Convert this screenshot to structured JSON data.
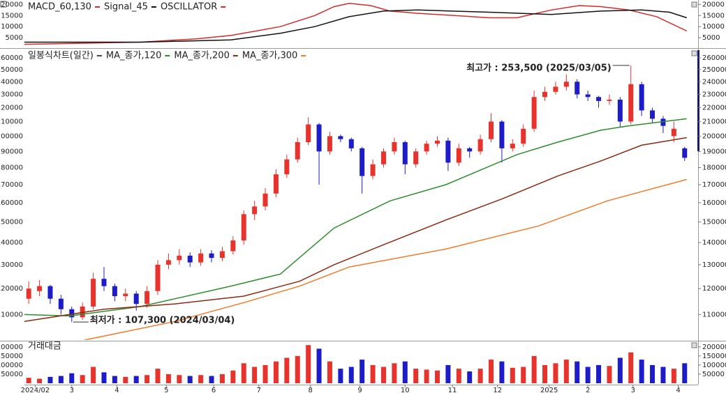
{
  "chart_data": [
    {
      "type": "line",
      "xlim": [
        0,
        310
      ],
      "ylim": [
        0,
        22000
      ],
      "yticks": [
        5000,
        10000,
        15000,
        20000
      ],
      "series": [
        {
          "name": "MACD_60,130",
          "color": "#d42a2a",
          "x": [
            0,
            28,
            54,
            80,
            96,
            119,
            135,
            144,
            151,
            161,
            170,
            183,
            200,
            216,
            229,
            245,
            258,
            268,
            281,
            294,
            308
          ],
          "values": [
            2000,
            2500,
            3000,
            4500,
            6000,
            10000,
            15000,
            19000,
            20500,
            19500,
            17000,
            16000,
            15000,
            14000,
            14000,
            17500,
            19500,
            19000,
            17500,
            14500,
            8000
          ]
        },
        {
          "name": "Signal_45",
          "color": "#111111",
          "x": [
            0,
            54,
            96,
            119,
            135,
            151,
            167,
            183,
            216,
            245,
            268,
            287,
            300,
            308
          ],
          "values": [
            3000,
            3000,
            4000,
            7000,
            10000,
            14500,
            17000,
            17500,
            16500,
            15500,
            17000,
            17500,
            16500,
            14000
          ]
        }
      ],
      "legend_extra": "OSCILLATOR",
      "legend_extra_color": "#d42a2a"
    },
    {
      "type": "candlestick",
      "title": "일봉식차트(일간)",
      "log_y": true,
      "xlim": [
        0,
        310
      ],
      "ylim": [
        101000,
        268000
      ],
      "yticks": [
        110000,
        120000,
        130000,
        140000,
        150000,
        160000,
        170000,
        180000,
        190000,
        200000,
        210000,
        220000,
        230000,
        240000,
        250000,
        260000
      ],
      "up_color": "#e8322c",
      "down_color": "#1c1cc8",
      "x": [
        2,
        7,
        12,
        17,
        22,
        27,
        32,
        37,
        42,
        47,
        52,
        57,
        62,
        67,
        72,
        77,
        82,
        87,
        92,
        97,
        102,
        107,
        112,
        117,
        122,
        127,
        132,
        137,
        142,
        147,
        152,
        157,
        162,
        167,
        172,
        177,
        182,
        187,
        192,
        197,
        202,
        207,
        212,
        217,
        222,
        227,
        232,
        237,
        242,
        247,
        252,
        257,
        262,
        267,
        272,
        277,
        282,
        287,
        292,
        297,
        302,
        307
      ],
      "open": [
        116000,
        119000,
        121000,
        116000,
        112000,
        109000,
        113000,
        124000,
        121000,
        117000,
        118000,
        114000,
        119000,
        130000,
        132000,
        134000,
        131000,
        135000,
        133000,
        136000,
        141000,
        154000,
        158000,
        165000,
        176000,
        185000,
        196000,
        208000,
        190000,
        200000,
        198000,
        192000,
        175000,
        182000,
        190000,
        196000,
        182000,
        190000,
        195000,
        197000,
        183000,
        192000,
        190000,
        198000,
        210000,
        192000,
        195000,
        205000,
        228000,
        232000,
        236000,
        240000,
        230000,
        228000,
        225000,
        226000,
        210000,
        238000,
        218000,
        212000,
        200000,
        192000
      ],
      "high": [
        123000,
        123500,
        121500,
        117500,
        113000,
        114500,
        126500,
        129000,
        122000,
        120000,
        119000,
        121000,
        132000,
        135000,
        137000,
        135500,
        137000,
        136500,
        138000,
        143000,
        156000,
        161000,
        168000,
        179000,
        188000,
        199000,
        213000,
        209000,
        203000,
        201000,
        199000,
        193000,
        185000,
        192000,
        199000,
        197000,
        192000,
        197000,
        200000,
        199000,
        195000,
        193000,
        201000,
        216000,
        211000,
        198000,
        208000,
        233000,
        236000,
        240000,
        246000,
        242000,
        233000,
        229000,
        230000,
        228000,
        253500,
        240000,
        220000,
        214000,
        210000,
        193000
      ],
      "low": [
        114000,
        117000,
        114000,
        110000,
        107300,
        108000,
        112000,
        119000,
        115000,
        115000,
        111500,
        112500,
        117500,
        128000,
        130000,
        129000,
        129500,
        131000,
        131500,
        134500,
        139000,
        151000,
        156000,
        163000,
        174000,
        183000,
        194000,
        170000,
        188000,
        196000,
        190000,
        165000,
        173000,
        180000,
        188000,
        176000,
        180000,
        188000,
        193000,
        178000,
        181000,
        186000,
        188000,
        196000,
        183000,
        190000,
        193000,
        203000,
        225000,
        230000,
        233000,
        227000,
        225000,
        220000,
        222000,
        206000,
        208000,
        214000,
        209000,
        202000,
        196000,
        184000
      ],
      "close": [
        120000,
        121000,
        116000,
        112000,
        109000,
        113000,
        124000,
        121000,
        117000,
        118000,
        114000,
        119000,
        130000,
        132000,
        134000,
        131000,
        135000,
        133000,
        136000,
        141000,
        154000,
        158000,
        165000,
        176000,
        185000,
        196000,
        208000,
        190000,
        200000,
        198000,
        192000,
        175000,
        182000,
        190000,
        196000,
        182000,
        190000,
        195000,
        197000,
        183000,
        192000,
        190000,
        198000,
        210000,
        192000,
        195000,
        205000,
        228000,
        232000,
        236000,
        240000,
        230000,
        228000,
        225000,
        226000,
        210000,
        238000,
        218000,
        212000,
        207000,
        205000,
        186000
      ],
      "series": [
        {
          "name": "MA_종가,120",
          "color": "#2e8b2e",
          "x": [
            0,
            21,
            54,
            96,
            119,
            144,
            170,
            196,
            229,
            248,
            268,
            281,
            308
          ],
          "values": [
            110000,
            109500,
            113000,
            121000,
            126000,
            147000,
            161000,
            170000,
            188000,
            196000,
            204000,
            207000,
            212000
          ]
        },
        {
          "name": "MA_종가,200",
          "color": "#8b2a10",
          "x": [
            0,
            37,
            70,
            102,
            128,
            144,
            167,
            196,
            222,
            248,
            268,
            287,
            308
          ],
          "values": [
            107500,
            112000,
            114000,
            117000,
            123000,
            130000,
            139000,
            151000,
            162000,
            175000,
            184000,
            194000,
            199000
          ]
        },
        {
          "name": "MA_종가,300",
          "color": "#f07a2a",
          "x": [
            28,
            70,
            102,
            128,
            151,
            196,
            239,
            271,
            308
          ],
          "values": [
            101000,
            107500,
            114500,
            121000,
            129000,
            137000,
            148000,
            161000,
            173000
          ]
        }
      ],
      "annotations": [
        {
          "text": "최고가 : 253,500 (2025/03/05)",
          "value": 253500,
          "color": "#e8322c"
        },
        {
          "text": "최저가 : 107,300 (2024/03/04)",
          "value": 107300,
          "color": "#1c1cc8"
        }
      ]
    },
    {
      "type": "bar",
      "title": "거래대금",
      "xlim": [
        0,
        310
      ],
      "ylim": [
        0,
        230000
      ],
      "yticks": [
        50000,
        100000,
        150000,
        200000
      ],
      "values": [
        30000,
        25000,
        35000,
        40000,
        55000,
        45000,
        90000,
        60000,
        40000,
        35000,
        40000,
        45000,
        80000,
        50000,
        45000,
        40000,
        45000,
        40000,
        50000,
        70000,
        110000,
        90000,
        100000,
        120000,
        140000,
        150000,
        210000,
        190000,
        120000,
        80000,
        90000,
        130000,
        100000,
        90000,
        110000,
        120000,
        80000,
        75000,
        70000,
        100000,
        80000,
        65000,
        80000,
        130000,
        120000,
        85000,
        90000,
        150000,
        100000,
        110000,
        130000,
        120000,
        90000,
        100000,
        95000,
        140000,
        170000,
        130000,
        100000,
        90000,
        80000,
        110000
      ],
      "xticks": [
        {
          "value": 5,
          "label": "2024/02"
        },
        {
          "value": 22,
          "label": "3"
        },
        {
          "value": 43,
          "label": "4"
        },
        {
          "value": 66,
          "label": "5"
        },
        {
          "value": 88,
          "label": "6"
        },
        {
          "value": 109,
          "label": "7"
        },
        {
          "value": 133,
          "label": "8"
        },
        {
          "value": 156,
          "label": "9"
        },
        {
          "value": 177,
          "label": "10"
        },
        {
          "value": 199,
          "label": "11"
        },
        {
          "value": 220,
          "label": "12"
        },
        {
          "value": 244,
          "label": "2025"
        },
        {
          "value": 262,
          "label": "2"
        },
        {
          "value": 283,
          "label": "3"
        },
        {
          "value": 304,
          "label": "4"
        }
      ]
    }
  ]
}
